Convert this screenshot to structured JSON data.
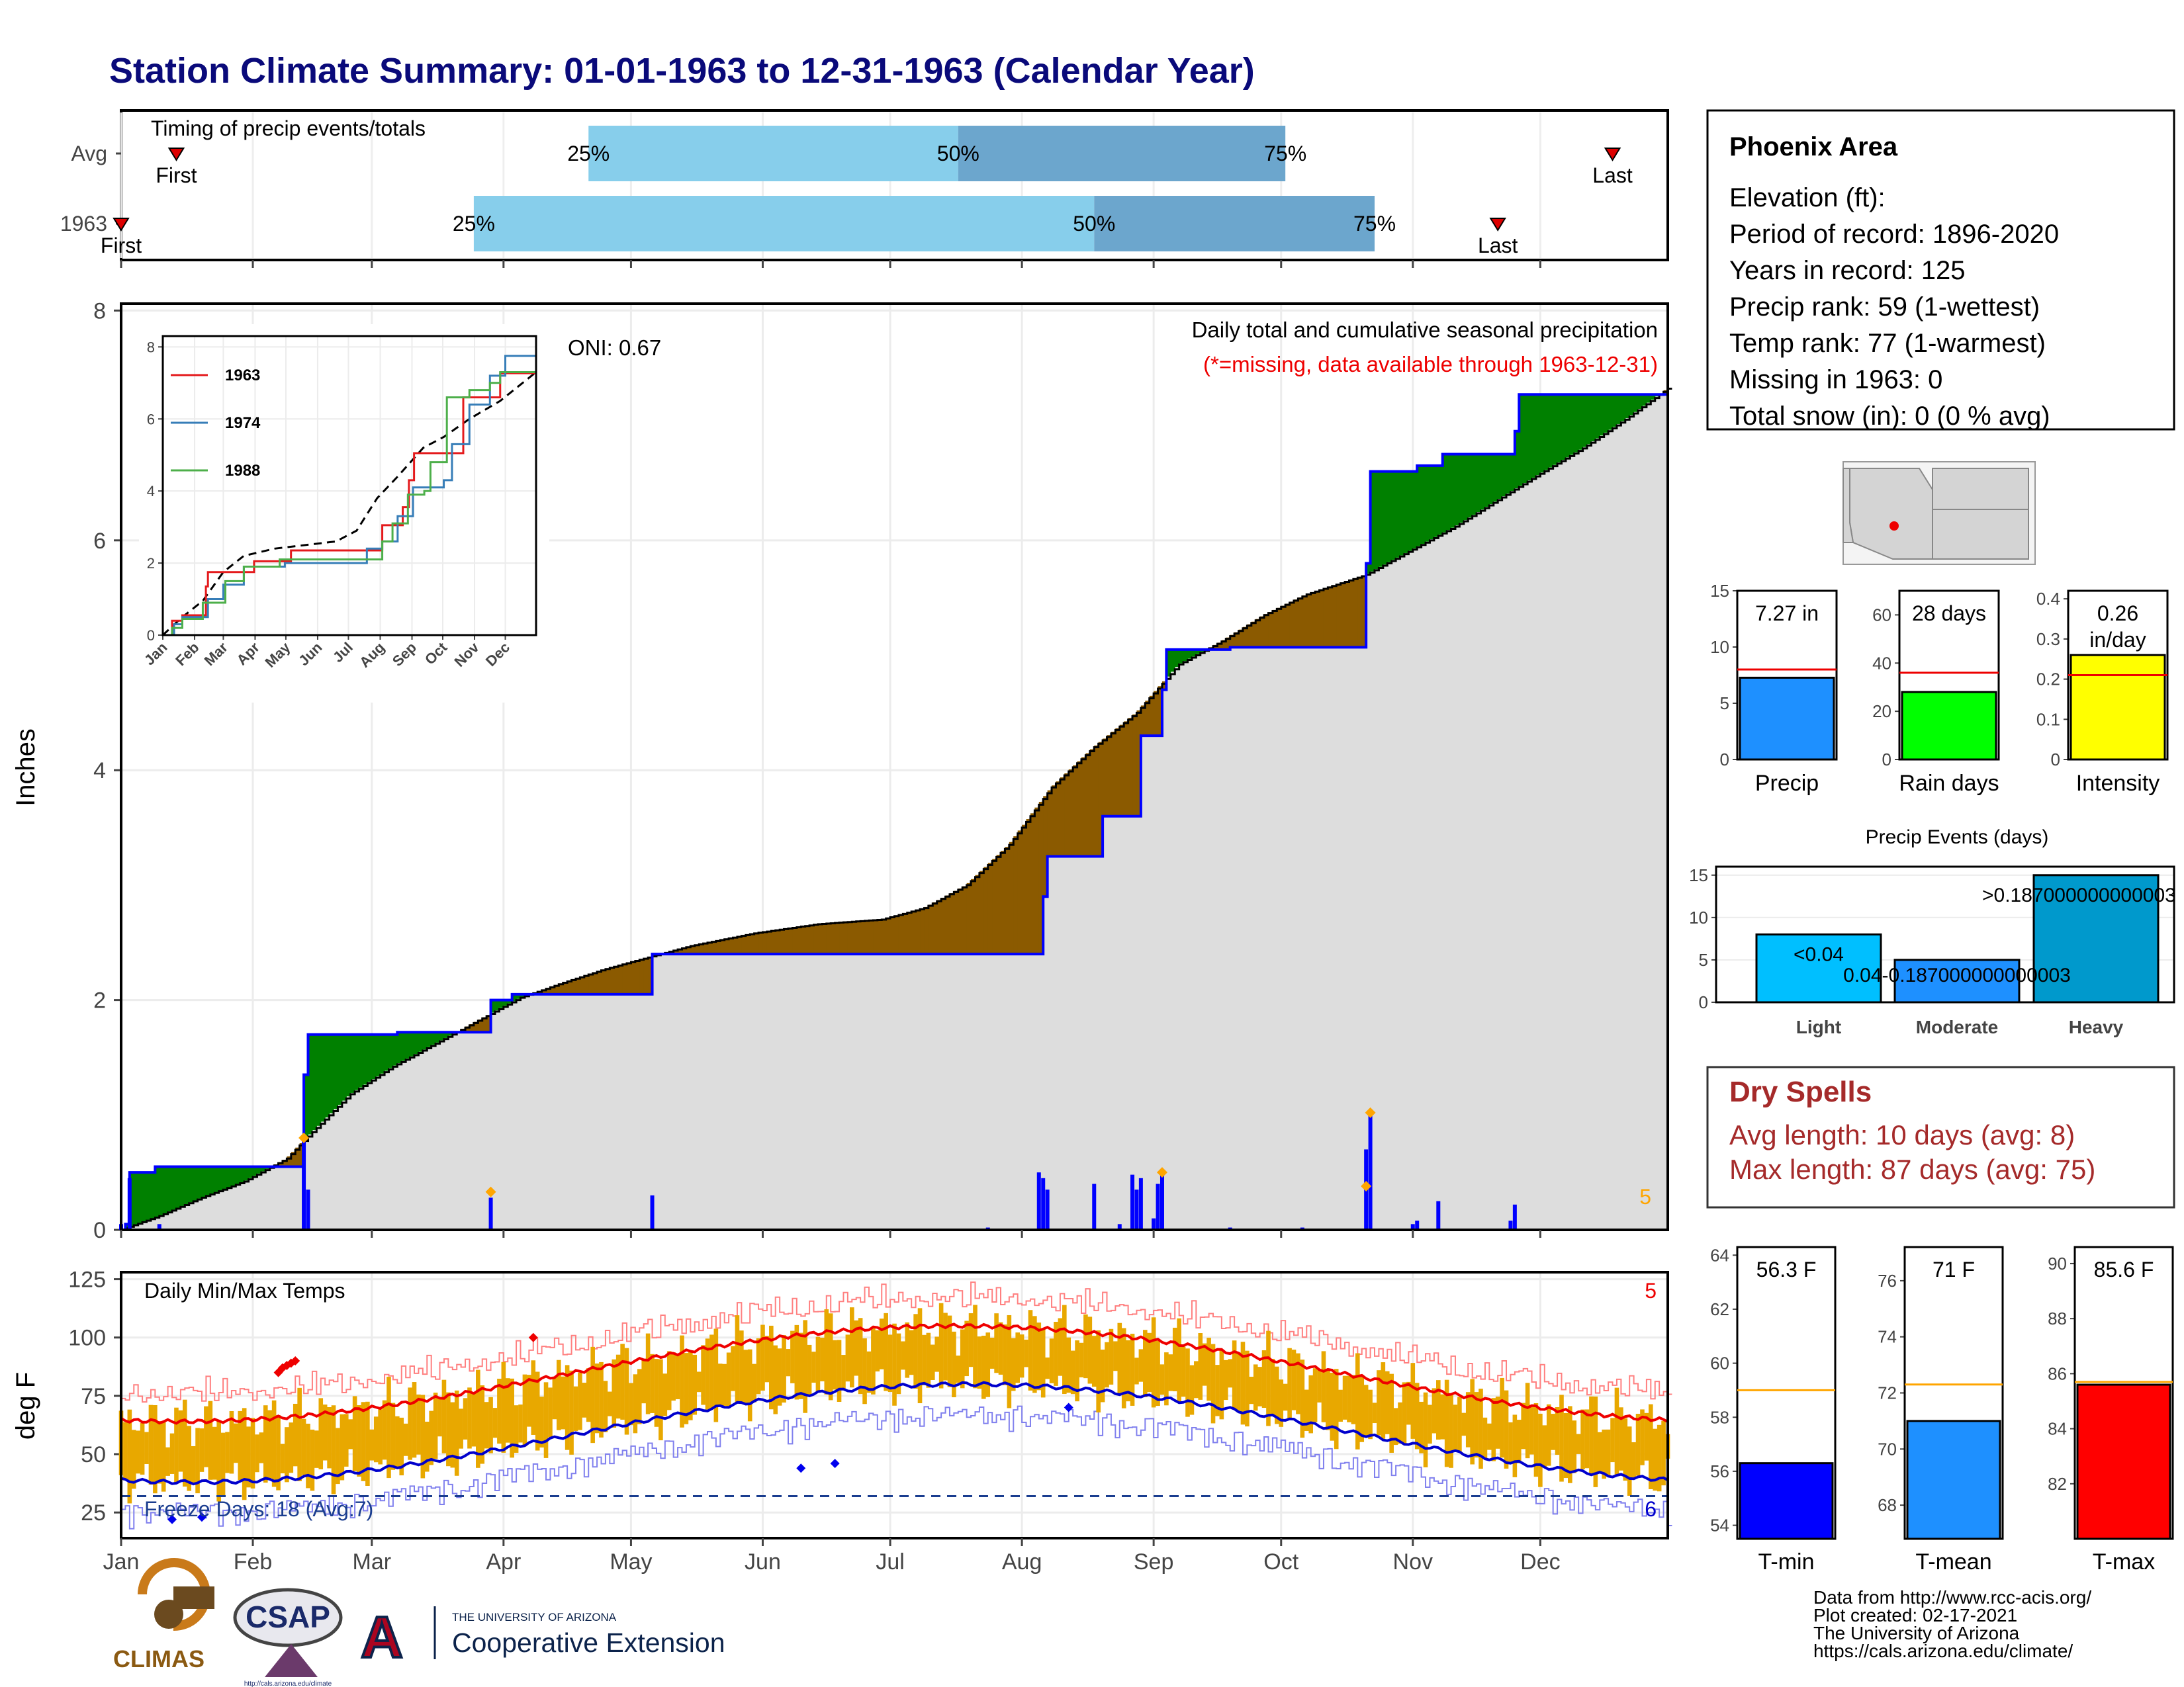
{
  "title": "Station Climate Summary: 01-01-1963 to 12-31-1963 (Calendar Year)",
  "months": [
    "Jan",
    "Feb",
    "Mar",
    "Apr",
    "May",
    "Jun",
    "Jul",
    "Aug",
    "Sep",
    "Oct",
    "Nov",
    "Dec"
  ],
  "timing": {
    "title": "Timing of precip events/totals",
    "rows": [
      "Avg",
      "1963"
    ],
    "labels": {
      "first": "First",
      "last": "Last",
      "p25": "25%",
      "p50": "50%",
      "p75": "75%"
    },
    "avg": {
      "first_doy": 14,
      "p25_doy": 111,
      "p50_doy": 198,
      "p75_doy": 275,
      "last_doy": 352
    },
    "y1963": {
      "first_doy": 1,
      "p25_doy": 84,
      "p50_doy": 230,
      "p75_doy": 296,
      "last_doy": 325
    },
    "colors": {
      "early": "#87ceeb",
      "late": "#6ca6cd",
      "marker": "#dd0000"
    }
  },
  "precip": {
    "title": "Daily total and cumulative seasonal precipitation",
    "note": "(*=missing, data available through 1963-12-31)",
    "oni": "ONI: 0.67",
    "ylabel": "Inches",
    "yticks": [
      0,
      2,
      4,
      6,
      8
    ],
    "count_label": "5",
    "cumulative_1963": [
      [
        1,
        0
      ],
      [
        2,
        0.05
      ],
      [
        3,
        0.5
      ],
      [
        9,
        0.55
      ],
      [
        43,
        0.55
      ],
      [
        44,
        1.35
      ],
      [
        45,
        1.7
      ],
      [
        65,
        1.7
      ],
      [
        66,
        1.72
      ],
      [
        87,
        1.72
      ],
      [
        88,
        2.0
      ],
      [
        92,
        2.0
      ],
      [
        93,
        2.05
      ],
      [
        125,
        2.05
      ],
      [
        126,
        2.4
      ],
      [
        217,
        2.4
      ],
      [
        218,
        2.9
      ],
      [
        219,
        3.25
      ],
      [
        231,
        3.25
      ],
      [
        232,
        3.6
      ],
      [
        240,
        3.6
      ],
      [
        241,
        4.3
      ],
      [
        245,
        4.3
      ],
      [
        246,
        4.7
      ],
      [
        247,
        5.05
      ],
      [
        261,
        5.05
      ],
      [
        262,
        5.07
      ],
      [
        293,
        5.07
      ],
      [
        294,
        5.8
      ],
      [
        295,
        6.6
      ],
      [
        305,
        6.6
      ],
      [
        306,
        6.65
      ],
      [
        311,
        6.65
      ],
      [
        312,
        6.75
      ],
      [
        328,
        6.75
      ],
      [
        329,
        6.95
      ],
      [
        330,
        7.27
      ],
      [
        365,
        7.27
      ]
    ],
    "cumulative_avg": [
      [
        1,
        0
      ],
      [
        10,
        0.12
      ],
      [
        20,
        0.28
      ],
      [
        30,
        0.42
      ],
      [
        40,
        0.62
      ],
      [
        46,
        0.85
      ],
      [
        55,
        1.18
      ],
      [
        65,
        1.42
      ],
      [
        75,
        1.62
      ],
      [
        85,
        1.82
      ],
      [
        95,
        2.02
      ],
      [
        105,
        2.15
      ],
      [
        115,
        2.27
      ],
      [
        125,
        2.37
      ],
      [
        135,
        2.47
      ],
      [
        150,
        2.58
      ],
      [
        165,
        2.66
      ],
      [
        180,
        2.7
      ],
      [
        190,
        2.8
      ],
      [
        200,
        3.0
      ],
      [
        210,
        3.35
      ],
      [
        220,
        3.85
      ],
      [
        230,
        4.2
      ],
      [
        240,
        4.5
      ],
      [
        250,
        4.92
      ],
      [
        260,
        5.12
      ],
      [
        270,
        5.35
      ],
      [
        280,
        5.53
      ],
      [
        294,
        5.7
      ],
      [
        305,
        5.92
      ],
      [
        315,
        6.12
      ],
      [
        325,
        6.35
      ],
      [
        335,
        6.58
      ],
      [
        345,
        6.8
      ],
      [
        355,
        7.05
      ],
      [
        365,
        7.32
      ]
    ],
    "daily_bars": [
      [
        1,
        0.05
      ],
      [
        3,
        0.45
      ],
      [
        10,
        0.05
      ],
      [
        44,
        0.8
      ],
      [
        45,
        0.35
      ],
      [
        88,
        0.28
      ],
      [
        126,
        0.3
      ],
      [
        205,
        0.02
      ],
      [
        217,
        0.5
      ],
      [
        218,
        0.45
      ],
      [
        219,
        0.35
      ],
      [
        230,
        0.4
      ],
      [
        236,
        0.05
      ],
      [
        239,
        0.48
      ],
      [
        240,
        0.35
      ],
      [
        241,
        0.45
      ],
      [
        244,
        0.1
      ],
      [
        245,
        0.4
      ],
      [
        246,
        0.5
      ],
      [
        262,
        0.02
      ],
      [
        279,
        0.02
      ],
      [
        294,
        0.7
      ],
      [
        295,
        1.0
      ],
      [
        305,
        0.05
      ],
      [
        306,
        0.08
      ],
      [
        311,
        0.25
      ],
      [
        328,
        0.08
      ],
      [
        329,
        0.22
      ]
    ],
    "event_markers": [
      [
        44,
        0.8
      ],
      [
        88,
        0.33
      ],
      [
        246,
        0.5
      ],
      [
        294,
        0.38
      ],
      [
        295,
        1.02
      ]
    ],
    "colors": {
      "surplus": "#008000",
      "deficit": "#8b5a00",
      "avg_fill": "#dddddd",
      "step": "#0000ff",
      "bars": "#0000ff",
      "markers": "#ffa500"
    }
  },
  "inset": {
    "series": [
      {
        "name": "1963",
        "color": "#e41a1c",
        "points": [
          [
            1,
            0
          ],
          [
            10,
            0.4
          ],
          [
            20,
            0.55
          ],
          [
            43,
            1.35
          ],
          [
            45,
            1.75
          ],
          [
            80,
            1.75
          ],
          [
            90,
            2.05
          ],
          [
            125,
            2.05
          ],
          [
            126,
            2.35
          ],
          [
            205,
            2.35
          ],
          [
            215,
            3.05
          ],
          [
            235,
            3.55
          ],
          [
            241,
            4.3
          ],
          [
            246,
            5.05
          ],
          [
            280,
            5.05
          ],
          [
            294,
            6.6
          ],
          [
            305,
            6.6
          ],
          [
            330,
            7.27
          ],
          [
            365,
            7.35
          ]
        ]
      },
      {
        "name": "1974",
        "color": "#377eb8",
        "points": [
          [
            1,
            0
          ],
          [
            12,
            0.3
          ],
          [
            20,
            0.5
          ],
          [
            45,
            1.0
          ],
          [
            60,
            1.4
          ],
          [
            80,
            1.9
          ],
          [
            120,
            2.0
          ],
          [
            185,
            2.0
          ],
          [
            200,
            2.4
          ],
          [
            215,
            2.6
          ],
          [
            230,
            3.3
          ],
          [
            245,
            4.1
          ],
          [
            275,
            4.3
          ],
          [
            283,
            5.3
          ],
          [
            300,
            6.4
          ],
          [
            320,
            7.2
          ],
          [
            335,
            7.75
          ],
          [
            365,
            7.8
          ]
        ]
      },
      {
        "name": "1988",
        "color": "#4daf4a",
        "points": [
          [
            1,
            0
          ],
          [
            10,
            0.2
          ],
          [
            20,
            0.45
          ],
          [
            40,
            0.9
          ],
          [
            62,
            1.5
          ],
          [
            80,
            1.9
          ],
          [
            115,
            2.1
          ],
          [
            200,
            2.1
          ],
          [
            215,
            2.6
          ],
          [
            225,
            3.1
          ],
          [
            240,
            3.9
          ],
          [
            256,
            4.0
          ],
          [
            262,
            4.8
          ],
          [
            278,
            6.6
          ],
          [
            300,
            6.8
          ],
          [
            320,
            7.0
          ],
          [
            330,
            7.3
          ],
          [
            365,
            7.55
          ]
        ]
      }
    ],
    "avg_points": [
      [
        1,
        0
      ],
      [
        20,
        0.5
      ],
      [
        40,
        0.95
      ],
      [
        60,
        1.75
      ],
      [
        80,
        2.2
      ],
      [
        110,
        2.4
      ],
      [
        140,
        2.5
      ],
      [
        170,
        2.6
      ],
      [
        190,
        2.9
      ],
      [
        210,
        3.8
      ],
      [
        230,
        4.4
      ],
      [
        255,
        5.2
      ],
      [
        275,
        5.5
      ],
      [
        300,
        6.0
      ],
      [
        330,
        6.5
      ],
      [
        365,
        7.3
      ]
    ],
    "yticks": [
      0,
      2,
      4,
      6,
      8
    ],
    "xlabels": [
      "Jan",
      "Feb",
      "Mar",
      "Apr",
      "May",
      "Jun",
      "Jul",
      "Aug",
      "Sep",
      "Oct",
      "Nov",
      "Dec"
    ]
  },
  "temps": {
    "title": "Daily Min/Max Temps",
    "ylabel": "deg F",
    "yticks": [
      25,
      50,
      75,
      100,
      125
    ],
    "freeze_text": "Freeze Days: 18 (Avg:7)",
    "freeze_line": 32,
    "count_max": "5",
    "count_min": "6",
    "colors": {
      "bars": "#e8a800",
      "max_avg": "#ee0000",
      "min_avg": "#0000cc",
      "max_rec": "#ff8080",
      "min_rec": "#8080ee",
      "freeze": "#1a3d8f"
    }
  },
  "station": {
    "name": "Phoenix Area",
    "lines": [
      "Elevation (ft):",
      "Period of record: 1896-2020",
      "Years in record: 125",
      "Precip rank: 59 (1-wettest)",
      "Temp rank: 77 (1-warmest)",
      "Missing in 1963: 0",
      "Total snow (in): 0 (0 % avg)"
    ]
  },
  "mini_precip": [
    {
      "label": "Precip",
      "value_text": "7.27 in",
      "value": 7.27,
      "avg": 8.0,
      "ymax": 15,
      "yticks": [
        0,
        5,
        10,
        15
      ],
      "color": "#1e90ff"
    },
    {
      "label": "Rain days",
      "value_text": "28 days",
      "value": 28,
      "avg": 36,
      "ymax": 70,
      "yticks": [
        0,
        20,
        40,
        60
      ],
      "color": "#00ff00"
    },
    {
      "label": "Intensity",
      "value_text": "0.26 in/day",
      "value": 0.26,
      "avg": 0.21,
      "ymax": 0.42,
      "yticks": [
        0.0,
        0.1,
        0.2,
        0.3,
        0.4
      ],
      "color": "#ffff00"
    }
  ],
  "events": {
    "title": "Precip Events (days)",
    "bars": [
      {
        "cat": "Light",
        "label": "<0.04",
        "value": 8
      },
      {
        "cat": "Moderate",
        "label": "0.04-0.187000000000003",
        "value": 5
      },
      {
        "cat": "Heavy",
        "label": ">0.187000000000003",
        "value": 15
      }
    ],
    "yticks": [
      0,
      5,
      10,
      15
    ],
    "colors": [
      "#00bfff",
      "#1e90ff",
      "#0099cc"
    ]
  },
  "dry_spells": {
    "title": "Dry Spells",
    "avg": "Avg length: 10 days (avg: 8)",
    "max": "Max length: 87 days (avg: 75)"
  },
  "mini_temps": [
    {
      "label": "T-min",
      "value_text": "56.3 F",
      "value": 56.3,
      "avg": 59.0,
      "ymin": 53.5,
      "ymax": 64.3,
      "yticks": [
        54,
        56,
        58,
        60,
        62,
        64
      ],
      "color": "#0000ff"
    },
    {
      "label": "T-mean",
      "value_text": "71 F",
      "value": 71.0,
      "avg": 72.3,
      "ymin": 66.8,
      "ymax": 77.2,
      "yticks": [
        68,
        70,
        72,
        74,
        76
      ],
      "color": "#1e90ff"
    },
    {
      "label": "T-max",
      "value_text": "85.6 F",
      "value": 85.6,
      "avg": 85.7,
      "ymin": 80.0,
      "ymax": 90.6,
      "yticks": [
        82,
        84,
        86,
        88,
        90
      ],
      "color": "#ff0000"
    }
  ],
  "footer": {
    "lines": [
      "Data from http://www.rcc-acis.org/",
      "Plot created: 02-17-2021",
      "The University of Arizona",
      "https://cals.arizona.edu/climate/"
    ],
    "climas": "CLIMAS",
    "csap": "CSAP",
    "csap_url": "http://cals.arizona.edu/climate",
    "ua_small": "THE UNIVERSITY OF ARIZONA",
    "ua_big": "Cooperative Extension"
  }
}
